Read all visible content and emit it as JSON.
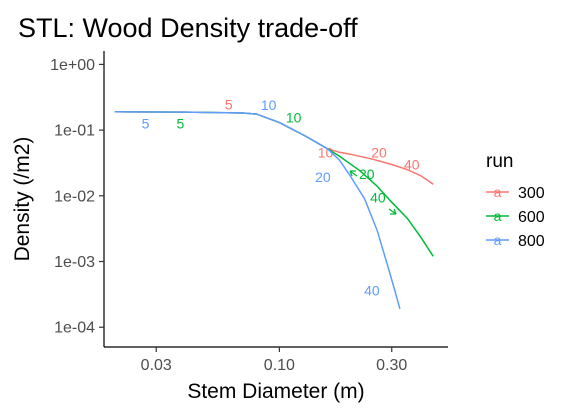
{
  "chart_data": {
    "type": "line",
    "title": "STL: Wood Density trade-off",
    "xlabel": "Stem Diameter (m)",
    "ylabel": "Density (/m2)",
    "x_scale": "log10",
    "y_scale": "log10",
    "xlim": [
      0.018,
      0.52
    ],
    "ylim": [
      5e-05,
      1.6
    ],
    "x_ticks": [
      0.03,
      0.1,
      0.3
    ],
    "x_tick_labels": [
      "0.03",
      "0.10",
      "0.30"
    ],
    "y_ticks": [
      1,
      0.1,
      0.01,
      0.001,
      0.0001
    ],
    "y_tick_labels": [
      "1e+00",
      "1e-01",
      "1e-02",
      "1e-03",
      "1e-04"
    ],
    "grid": false,
    "legend": {
      "title": "run",
      "position": "right",
      "glyph": "a"
    },
    "series": [
      {
        "name": "300",
        "color": "#F8766D",
        "points": [
          [
            0.02,
            0.19
          ],
          [
            0.04,
            0.188
          ],
          [
            0.07,
            0.182
          ],
          [
            0.08,
            0.175
          ],
          [
            0.1,
            0.13
          ],
          [
            0.13,
            0.08
          ],
          [
            0.16,
            0.052
          ],
          [
            0.18,
            0.046
          ],
          [
            0.2,
            0.043
          ],
          [
            0.25,
            0.036
          ],
          [
            0.3,
            0.03
          ],
          [
            0.35,
            0.025
          ],
          [
            0.4,
            0.02
          ],
          [
            0.45,
            0.015
          ]
        ],
        "labels": [
          {
            "text": "5",
            "x": 0.061,
            "y": 0.245
          },
          {
            "text": "10",
            "x": 0.157,
            "y": 0.046
          },
          {
            "text": "20",
            "x": 0.265,
            "y": 0.046
          },
          {
            "text": "40",
            "x": 0.365,
            "y": 0.03
          }
        ]
      },
      {
        "name": "600",
        "color": "#00BA38",
        "points": [
          [
            0.02,
            0.19
          ],
          [
            0.04,
            0.188
          ],
          [
            0.07,
            0.182
          ],
          [
            0.08,
            0.175
          ],
          [
            0.1,
            0.13
          ],
          [
            0.13,
            0.08
          ],
          [
            0.16,
            0.052
          ],
          [
            0.18,
            0.04
          ],
          [
            0.22,
            0.024
          ],
          [
            0.26,
            0.014
          ],
          [
            0.3,
            0.008
          ],
          [
            0.35,
            0.0045
          ],
          [
            0.4,
            0.0023
          ],
          [
            0.45,
            0.0012
          ]
        ],
        "labels": [
          {
            "text": "5",
            "x": 0.038,
            "y": 0.126
          },
          {
            "text": "10",
            "x": 0.115,
            "y": 0.155
          },
          {
            "text": "20",
            "x": 0.235,
            "y": 0.0215
          },
          {
            "text": "40",
            "x": 0.262,
            "y": 0.0095
          }
        ]
      },
      {
        "name": "800",
        "color": "#619CFF",
        "points": [
          [
            0.02,
            0.19
          ],
          [
            0.04,
            0.188
          ],
          [
            0.07,
            0.182
          ],
          [
            0.08,
            0.175
          ],
          [
            0.1,
            0.13
          ],
          [
            0.13,
            0.08
          ],
          [
            0.16,
            0.052
          ],
          [
            0.18,
            0.035
          ],
          [
            0.2,
            0.02
          ],
          [
            0.23,
            0.009
          ],
          [
            0.26,
            0.003
          ],
          [
            0.29,
            0.0008
          ],
          [
            0.31,
            0.00035
          ],
          [
            0.325,
            0.00019
          ]
        ],
        "labels": [
          {
            "text": "5",
            "x": 0.027,
            "y": 0.126
          },
          {
            "text": "10",
            "x": 0.09,
            "y": 0.24
          },
          {
            "text": "20",
            "x": 0.153,
            "y": 0.0195
          },
          {
            "text": "40",
            "x": 0.247,
            "y": 0.00036
          }
        ]
      }
    ]
  }
}
